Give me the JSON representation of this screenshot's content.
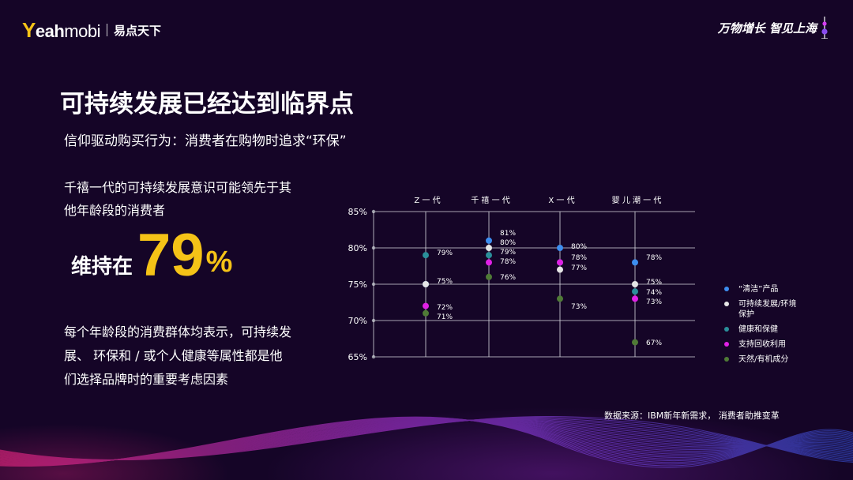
{
  "brand": {
    "logo_y": "Y",
    "logo_eah": "eah",
    "logo_mobi": "mobi",
    "name_cn": "易点天下"
  },
  "tagline": "万物增长 智见上海",
  "title": "可持续发展已经达到临界点",
  "subtitle": "信仰驱动购买行为：消费者在购物时追求“环保”",
  "intro": "千禧一代的可持续发展意识可能领先于其他年龄段的消费者",
  "stat": {
    "prefix": "维持在",
    "number": "79",
    "unit": "%"
  },
  "description": "每个年龄段的消费群体均表示，可持续发展、 环保和 / 或个人健康等属性都是他们选择品牌时的重要考虑因素",
  "source": "数据来源：IBM新年新需求， 消费者助推变革",
  "chart_data": {
    "type": "scatter",
    "categories": [
      "Z 一 代",
      "千 禧 一 代",
      "X 一 代",
      "婴 儿 潮 一 代"
    ],
    "y_ticks": [
      "85%",
      "80%",
      "75%",
      "70%",
      "65%"
    ],
    "ylim": [
      65,
      85
    ],
    "grid": true,
    "legend_position": "right",
    "series": [
      {
        "name": "“清洁”产品",
        "color": "#3d8ef0",
        "values": [
          75,
          81,
          80,
          78
        ]
      },
      {
        "name": "可持续发展/环境保护",
        "color": "#e6e6e6",
        "values": [
          75,
          80,
          77,
          75
        ]
      },
      {
        "name": "健康和保健",
        "color": "#2a8f9a",
        "values": [
          79,
          79,
          78,
          74
        ]
      },
      {
        "name": "支持回收利用",
        "color": "#e020e6",
        "values": [
          72,
          78,
          78,
          73
        ]
      },
      {
        "name": "天然/有机成分",
        "color": "#4f7a36",
        "values": [
          71,
          76,
          73,
          67
        ]
      }
    ],
    "point_labels": [
      [
        "79%",
        "75%",
        "72%",
        "71%"
      ],
      [
        "81%",
        "80%",
        "79%",
        "78%",
        "76%"
      ],
      [
        "80%",
        "78%",
        "77%",
        "73%"
      ],
      [
        "78%",
        "75%",
        "74%",
        "73%",
        "67%"
      ]
    ]
  }
}
